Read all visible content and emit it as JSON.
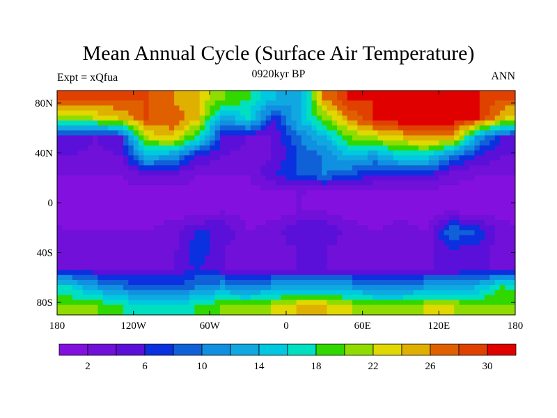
{
  "title": "Mean Annual Cycle (Surface Air Temperature)",
  "left_label": "Expt = xQfua",
  "center_label": "0920kyr BP",
  "right_label": "ANN",
  "chart_data": {
    "type": "heatmap",
    "title": "Mean Annual Cycle (Surface Air Temperature)",
    "xlim": [
      -180,
      180
    ],
    "ylim": [
      -90,
      90
    ],
    "x_ticks": [
      {
        "v": -180,
        "label": "180"
      },
      {
        "v": -120,
        "label": "120W"
      },
      {
        "v": -60,
        "label": "60W"
      },
      {
        "v": 0,
        "label": "0"
      },
      {
        "v": 60,
        "label": "60E"
      },
      {
        "v": 120,
        "label": "120E"
      },
      {
        "v": 180,
        "label": "180"
      }
    ],
    "y_ticks": [
      {
        "v": 80,
        "label": "80N"
      },
      {
        "v": 40,
        "label": "40N"
      },
      {
        "v": 0,
        "label": "0"
      },
      {
        "v": -40,
        "label": "40S"
      },
      {
        "v": -80,
        "label": "80S"
      }
    ],
    "grid_lons": [
      -170,
      -150,
      -130,
      -110,
      -90,
      -70,
      -50,
      -30,
      -10,
      10,
      30,
      50,
      70,
      90,
      110,
      130,
      150,
      170
    ],
    "grid_lats": [
      82.5,
      67.5,
      52.5,
      37.5,
      22.5,
      7.5,
      -7.5,
      -22.5,
      -37.5,
      -52.5,
      -67.5,
      -82.5
    ],
    "values": [
      [
        28,
        28,
        28,
        28,
        26,
        24,
        20,
        18,
        14,
        12,
        26,
        30,
        30,
        30,
        30,
        30,
        30,
        28
      ],
      [
        20,
        22,
        24,
        28,
        28,
        24,
        12,
        16,
        6,
        14,
        20,
        26,
        30,
        32,
        32,
        32,
        30,
        24
      ],
      [
        6,
        4,
        6,
        22,
        24,
        18,
        6,
        4,
        4,
        10,
        14,
        20,
        22,
        24,
        26,
        26,
        12,
        6
      ],
      [
        4,
        3,
        4,
        14,
        12,
        6,
        4,
        3,
        4,
        8,
        10,
        14,
        12,
        16,
        16,
        10,
        6,
        4
      ],
      [
        2,
        2,
        2,
        4,
        4,
        2,
        2,
        2,
        6,
        8,
        10,
        8,
        6,
        6,
        6,
        3,
        2,
        2
      ],
      [
        1,
        1,
        1,
        1,
        1,
        1,
        1,
        1,
        1,
        2,
        1,
        1,
        1,
        1,
        1,
        1,
        1,
        1
      ],
      [
        1,
        1,
        1,
        1,
        1,
        1,
        2,
        1,
        1,
        2,
        2,
        1,
        1,
        1,
        1,
        2,
        1,
        1
      ],
      [
        2,
        2,
        2,
        2,
        3,
        6,
        6,
        2,
        3,
        6,
        6,
        3,
        2,
        3,
        2,
        10,
        8,
        3
      ],
      [
        3,
        3,
        3,
        3,
        3,
        8,
        4,
        3,
        3,
        4,
        4,
        3,
        3,
        3,
        3,
        6,
        5,
        3
      ],
      [
        4,
        4,
        4,
        4,
        4,
        6,
        4,
        4,
        4,
        4,
        4,
        4,
        4,
        4,
        4,
        4,
        4,
        4
      ],
      [
        16,
        12,
        10,
        8,
        8,
        10,
        12,
        10,
        12,
        12,
        12,
        12,
        10,
        10,
        12,
        12,
        14,
        18
      ],
      [
        20,
        20,
        18,
        16,
        16,
        18,
        20,
        20,
        22,
        24,
        24,
        22,
        20,
        20,
        22,
        22,
        20,
        20
      ]
    ],
    "colorbar": {
      "levels": [
        2,
        4,
        6,
        8,
        10,
        12,
        14,
        16,
        18,
        20,
        22,
        24,
        26,
        28,
        30
      ],
      "labels": [
        "2",
        "6",
        "10",
        "14",
        "18",
        "22",
        "26",
        "30"
      ],
      "colors": [
        "#8410e0",
        "#7010d8",
        "#5a10d8",
        "#0a30e0",
        "#1060d8",
        "#1090e0",
        "#10a8e0",
        "#00c8e0",
        "#00e0c0",
        "#30d800",
        "#90dc00",
        "#e0d800",
        "#e0b000",
        "#e06000",
        "#e04000",
        "#e00000"
      ]
    }
  }
}
